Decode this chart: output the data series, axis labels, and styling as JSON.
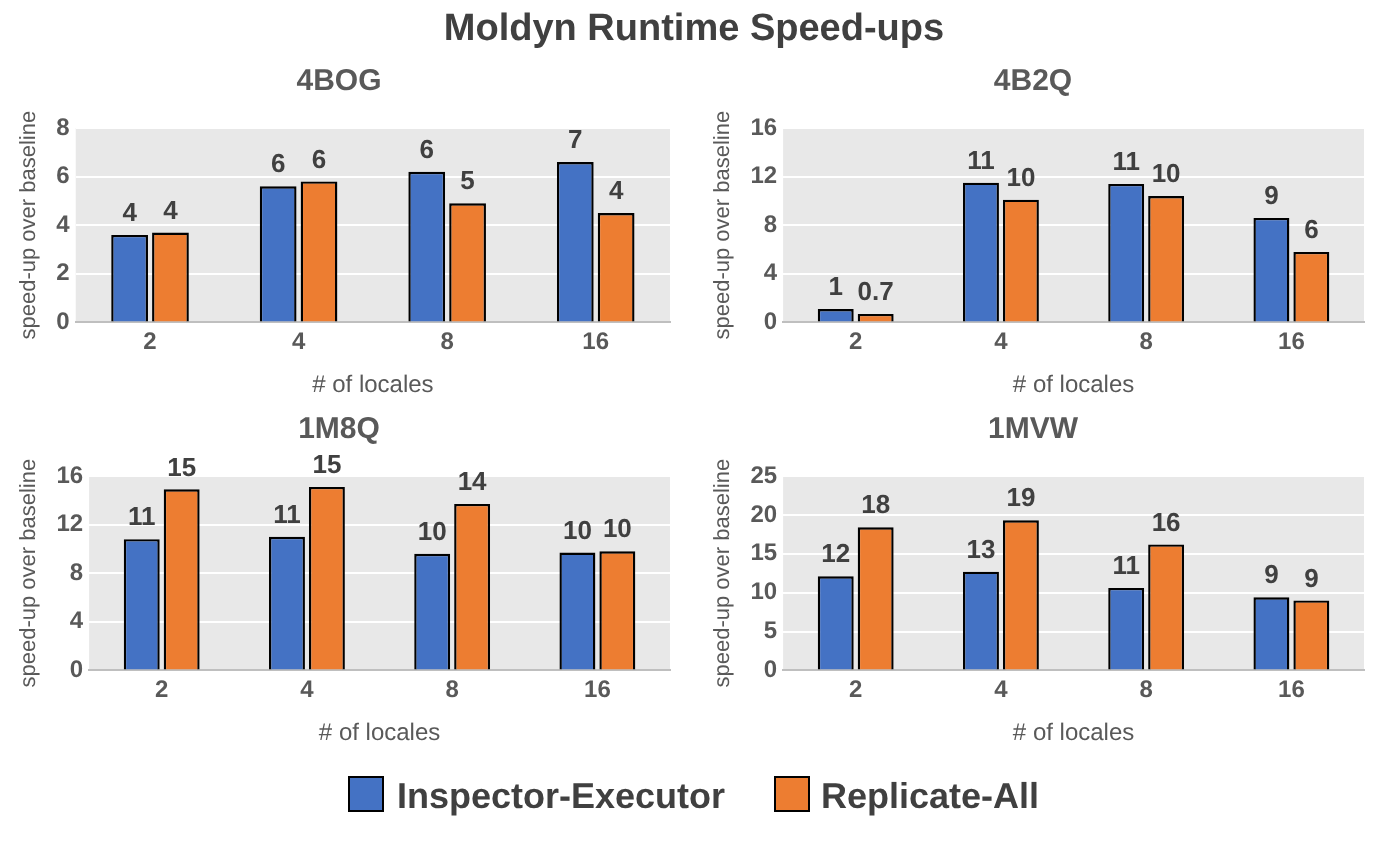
{
  "chart_data": [
    {
      "type": "bar",
      "title": "4BOG",
      "xlabel": "# of locales",
      "ylabel": "speed-up over baseline",
      "annotations": [
        "Moldyn Runtime Speed-ups"
      ],
      "categories": [
        "2",
        "4",
        "8",
        "16"
      ],
      "ylim": [
        0,
        8
      ],
      "yticks": [
        0,
        2,
        4,
        6,
        8
      ],
      "grid": "y",
      "legend": "bottom",
      "series": [
        {
          "name": "Inspector-Executor",
          "color": "#4472c4",
          "values": [
            3.6,
            5.6,
            6.2,
            6.6
          ],
          "value_labels": [
            "4",
            "6",
            "6",
            "7"
          ]
        },
        {
          "name": "Replicate-All",
          "color": "#ed7d31",
          "values": [
            3.7,
            5.8,
            4.9,
            4.5
          ],
          "value_labels": [
            "4",
            "6",
            "5",
            "4"
          ]
        }
      ]
    },
    {
      "type": "bar",
      "title": "4B2Q",
      "xlabel": "# of locales",
      "ylabel": "speed-up over baseline",
      "categories": [
        "2",
        "4",
        "8",
        "16"
      ],
      "ylim": [
        0,
        16
      ],
      "yticks": [
        0,
        4,
        8,
        12,
        16
      ],
      "grid": "y",
      "series": [
        {
          "color": "#4472c4",
          "values": [
            1.1,
            11.5,
            11.4,
            8.6
          ],
          "value_labels": [
            "1",
            "11",
            "11",
            "9"
          ]
        },
        {
          "color": "#ed7d31",
          "values": [
            0.7,
            10.1,
            10.4,
            5.8
          ],
          "value_labels": [
            "0.7",
            "10",
            "10",
            "6"
          ]
        }
      ]
    },
    {
      "type": "bar",
      "title": "1M8Q",
      "xlabel": "# of locales",
      "ylabel": "speed-up over baseline",
      "categories": [
        "2",
        "4",
        "8",
        "16"
      ],
      "ylim": [
        0,
        16
      ],
      "yticks": [
        0,
        4,
        8,
        12,
        16
      ],
      "grid": "y",
      "series": [
        {
          "color": "#4472c4",
          "values": [
            10.8,
            11.0,
            9.6,
            9.7
          ],
          "value_labels": [
            "11",
            "11",
            "10",
            "10"
          ]
        },
        {
          "color": "#ed7d31",
          "values": [
            14.9,
            15.1,
            13.7,
            9.8
          ],
          "value_labels": [
            "15",
            "15",
            "14",
            "10"
          ]
        }
      ]
    },
    {
      "type": "bar",
      "title": "1MVW",
      "xlabel": "# of locales",
      "ylabel": "speed-up over baseline",
      "categories": [
        "2",
        "4",
        "8",
        "16"
      ],
      "ylim": [
        0,
        25
      ],
      "yticks": [
        0,
        5,
        10,
        15,
        20,
        25
      ],
      "grid": "y",
      "series": [
        {
          "color": "#4472c4",
          "values": [
            12.1,
            12.7,
            10.6,
            9.4
          ],
          "value_labels": [
            "12",
            "13",
            "11",
            "9"
          ]
        },
        {
          "color": "#ed7d31",
          "values": [
            18.4,
            19.3,
            16.2,
            9.0
          ],
          "value_labels": [
            "18",
            "19",
            "16",
            "9"
          ]
        }
      ]
    }
  ]
}
